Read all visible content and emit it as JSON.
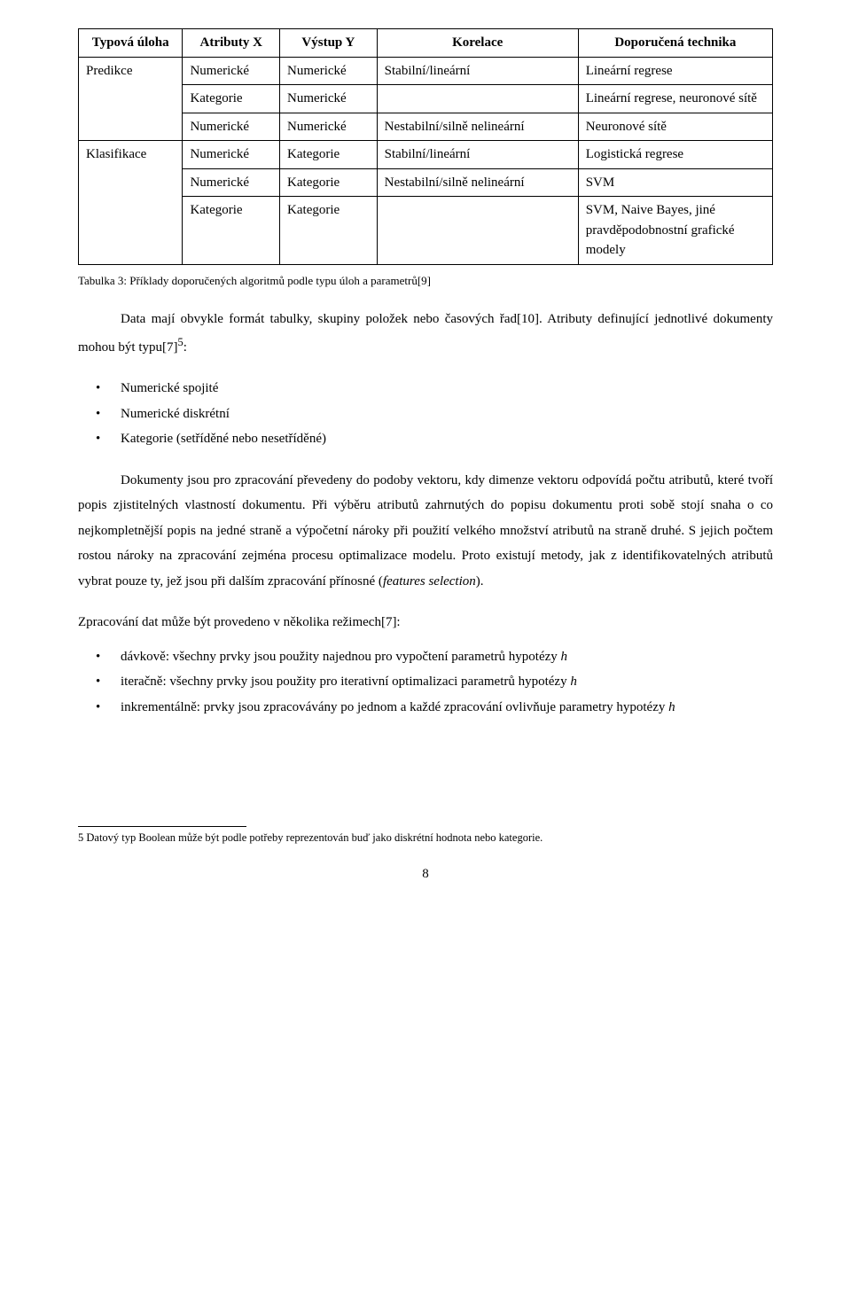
{
  "table": {
    "headers": [
      "Typová úloha",
      "Atributy X",
      "Výstup Y",
      "Korelace",
      "Doporučená technika"
    ],
    "rows": [
      [
        "Predikce",
        "Numerické",
        "Numerické",
        "Stabilní/lineární",
        "Lineární regrese"
      ],
      [
        "",
        "Kategorie",
        "Numerické",
        "",
        "Lineární regrese, neuronové sítě"
      ],
      [
        "",
        "Numerické",
        "Numerické",
        "Nestabilní/silně nelineární",
        "Neuronové sítě"
      ],
      [
        "Klasifikace",
        "Numerické",
        "Kategorie",
        "Stabilní/lineární",
        "Logistická regrese"
      ],
      [
        "",
        "Numerické",
        "Kategorie",
        "Nestabilní/silně nelineární",
        "SVM"
      ],
      [
        "",
        "Kategorie",
        "Kategorie",
        "",
        "SVM, Naive Bayes, jiné pravděpodobnostní grafické modely"
      ]
    ]
  },
  "caption": "Tabulka 3: Příklady doporučených algoritmů podle typu úloh a parametrů[9]",
  "para1_a": "Data mají obvykle formát tabulky, skupiny položek nebo časových řad[10]. Atributy definující jednotlivé dokumenty mohou být typu[7]",
  "para1_sup": "5",
  "para1_b": ":",
  "bullets1": [
    "Numerické spojité",
    "Numerické diskrétní",
    "Kategorie (setříděné nebo nesetříděné)"
  ],
  "para2": "Dokumenty jsou pro zpracování převedeny do podoby vektoru, kdy dimenze vektoru odpovídá počtu atributů, které tvoří popis zjistitelných vlastností dokumentu. Při výběru atributů zahrnutých do popisu dokumentu proti sobě stojí snaha o co nejkompletnější popis na jedné straně a výpočetní nároky při použití velkého množství atributů na straně druhé. S jejich počtem rostou nároky na zpracování zejména procesu optimalizace modelu. Proto existují metody, jak z identifikovatelných atributů vybrat pouze ty, jež jsou při dalším zpracování přínosné (",
  "para2_italic": "features selection",
  "para2_end": ").",
  "section": "Zpracování dat může být provedeno v několika režimech[7]:",
  "bullets2": {
    "b1_a": "dávkově: všechny prvky jsou použity najednou pro vypočtení parametrů hypotézy ",
    "b1_i": "h",
    "b2_a": "iteračně: všechny prvky jsou použity pro iterativní optimalizaci parametrů hypotézy ",
    "b2_i": "h",
    "b3_a": "inkrementálně: prvky jsou zpracovávány po jednom a každé zpracování ovlivňuje parametry hypotézy ",
    "b3_i": "h"
  },
  "footnote": "5   Datový typ Boolean může být podle potřeby reprezentován buď jako diskrétní hodnota nebo kategorie.",
  "pagenum": "8"
}
